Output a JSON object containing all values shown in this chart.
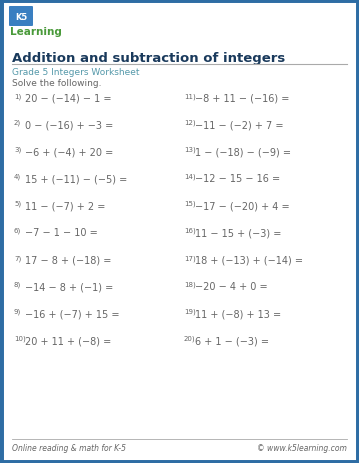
{
  "title": "Addition and subtraction of integers",
  "subtitle": "Grade 5 Integers Worksheet",
  "instruction": "Solve the following.",
  "border_color": "#2e6da4",
  "title_color": "#1a3a5c",
  "subtitle_color": "#5599aa",
  "text_color": "#666666",
  "bg_color": "#ffffff",
  "footer_left": "Online reading & math for K-5",
  "footer_right": "© www.k5learning.com",
  "problems_left": [
    {
      "num": "1)",
      "expr": "20 − (−14) − 1 ="
    },
    {
      "num": "2)",
      "expr": "0 − (−16) + −3 ="
    },
    {
      "num": "3)",
      "expr": "−6 + (−4) + 20 ="
    },
    {
      "num": "4)",
      "expr": "15 + (−11) − (−5) ="
    },
    {
      "num": "5)",
      "expr": "11 − (−7) + 2 ="
    },
    {
      "num": "6)",
      "expr": "−7 − 1 − 10 ="
    },
    {
      "num": "7)",
      "expr": "17 − 8 + (−18) ="
    },
    {
      "num": "8)",
      "expr": "−14 − 8 + (−1) ="
    },
    {
      "num": "9)",
      "expr": "−16 + (−7) + 15 ="
    },
    {
      "num": "10)",
      "expr": "20 + 11 + (−8) ="
    }
  ],
  "problems_right": [
    {
      "num": "11)",
      "expr": "−8 + 11 − (−16) ="
    },
    {
      "num": "12)",
      "expr": "−11 − (−2) + 7 ="
    },
    {
      "num": "13)",
      "expr": "1 − (−18) − (−9) ="
    },
    {
      "num": "14)",
      "expr": "−12 − 15 − 16 ="
    },
    {
      "num": "15)",
      "expr": "−17 − (−20) + 4 ="
    },
    {
      "num": "16)",
      "expr": "11 − 15 + (−3) ="
    },
    {
      "num": "17)",
      "expr": "18 + (−13) + (−14) ="
    },
    {
      "num": "18)",
      "expr": "−20 − 4 + 0 ="
    },
    {
      "num": "19)",
      "expr": "11 + (−8) + 13 ="
    },
    {
      "num": "20)",
      "expr": "6 + 1 − (−3) ="
    }
  ]
}
